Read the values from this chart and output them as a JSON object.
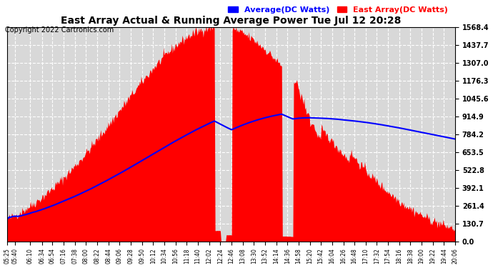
{
  "title": "East Array Actual & Running Average Power Tue Jul 12 20:28",
  "copyright": "Copyright 2022 Cartronics.com",
  "legend_avg": "Average(DC Watts)",
  "legend_east": "East Array(DC Watts)",
  "legend_avg_color": "#0000ff",
  "legend_east_color": "#ff0000",
  "y_labels": [
    "0.0",
    "130.7",
    "261.4",
    "392.1",
    "522.8",
    "653.5",
    "784.2",
    "914.9",
    "1045.6",
    "1176.3",
    "1307.0",
    "1437.7",
    "1568.4"
  ],
  "y_max": 1568.4,
  "y_min": 0.0,
  "background_color": "#ffffff",
  "plot_bg_color": "#d8d8d8",
  "grid_color": "#ffffff",
  "fill_color": "#ff0000",
  "avg_line_color": "#0000ff",
  "title_color": "#000000",
  "x_tick_labels": [
    "05:25",
    "05:40",
    "06:10",
    "06:34",
    "06:54",
    "07:16",
    "07:38",
    "08:00",
    "08:22",
    "08:44",
    "09:06",
    "09:28",
    "09:50",
    "10:12",
    "10:34",
    "10:56",
    "11:18",
    "11:40",
    "12:02",
    "12:24",
    "12:46",
    "13:08",
    "13:30",
    "13:52",
    "14:14",
    "14:36",
    "14:58",
    "15:20",
    "15:42",
    "16:04",
    "16:26",
    "16:48",
    "17:10",
    "17:32",
    "17:54",
    "18:16",
    "18:38",
    "19:00",
    "19:22",
    "19:44",
    "20:06"
  ],
  "start_hhmm": "05:25",
  "end_hhmm": "20:06",
  "peak_hhmm": "12:20",
  "peak_watts": 1568.4,
  "sigma_min": 195,
  "n_points": 600,
  "avg_peak_hhmm": "15:15",
  "avg_peak_watts": 850.0,
  "dip_times": [
    [
      "12:24",
      0.05
    ],
    [
      "12:36",
      0.03
    ],
    [
      "14:36",
      0.03
    ],
    [
      "15:10",
      0.95
    ],
    [
      "15:20",
      0.95
    ],
    [
      "15:30",
      0.9
    ],
    [
      "15:42",
      0.9
    ],
    [
      "16:04",
      0.9
    ],
    [
      "16:26",
      0.9
    ]
  ]
}
